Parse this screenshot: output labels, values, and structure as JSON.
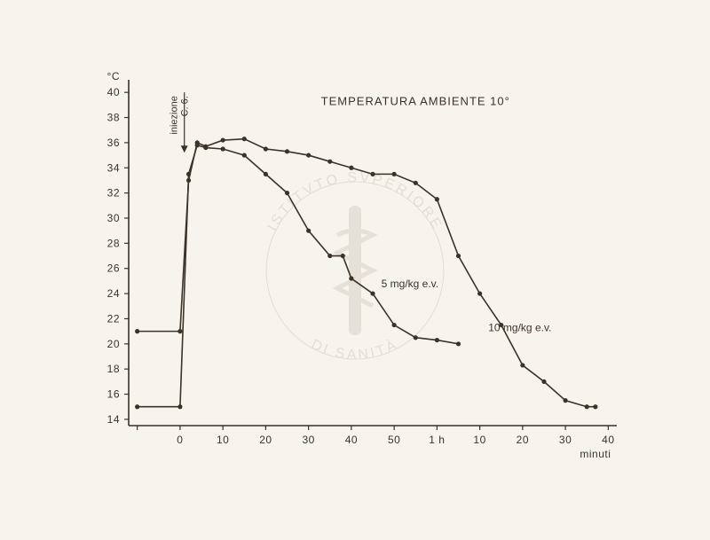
{
  "chart": {
    "type": "line",
    "title": "TEMPERATURA AMBIENTE 10°",
    "title_fontsize": 13,
    "y_unit_label": "°C",
    "x_axis_label": "minuti",
    "label_fontsize": 12,
    "background_color": "#f7f4ee",
    "axis_color": "#3b3228",
    "line_color": "#3b3228",
    "line_width": 1.6,
    "marker_style": "circle",
    "marker_radius": 2.6,
    "x_ticks": [
      {
        "v": -10,
        "label": ""
      },
      {
        "v": 0,
        "label": "0"
      },
      {
        "v": 10,
        "label": "10"
      },
      {
        "v": 20,
        "label": "20"
      },
      {
        "v": 30,
        "label": "30"
      },
      {
        "v": 40,
        "label": "40"
      },
      {
        "v": 50,
        "label": "50"
      },
      {
        "v": 60,
        "label": "1 h"
      },
      {
        "v": 70,
        "label": "10"
      },
      {
        "v": 80,
        "label": "20"
      },
      {
        "v": 90,
        "label": "30"
      },
      {
        "v": 100,
        "label": "40"
      }
    ],
    "y_ticks": [
      14,
      16,
      18,
      20,
      22,
      24,
      26,
      28,
      30,
      32,
      34,
      36,
      38,
      40
    ],
    "xlim": [
      -12,
      102
    ],
    "ylim": [
      13.5,
      41
    ],
    "injection": {
      "label_line1": "iniezione",
      "label_line2": "C. 6.",
      "x": 1,
      "arrow_top_y": 40,
      "arrow_bottom_y": 35.2
    },
    "series": [
      {
        "name": "5 mg/kg e.v.",
        "ann_label": "5 mg/kg e.v.",
        "ann_x": 47,
        "ann_y": 24.5,
        "points": [
          {
            "x": -10,
            "y": 15
          },
          {
            "x": 0,
            "y": 15
          },
          {
            "x": 2,
            "y": 33.5
          },
          {
            "x": 4,
            "y": 35.8
          },
          {
            "x": 6,
            "y": 35.6
          },
          {
            "x": 10,
            "y": 35.5
          },
          {
            "x": 15,
            "y": 35.0
          },
          {
            "x": 20,
            "y": 33.5
          },
          {
            "x": 25,
            "y": 32.0
          },
          {
            "x": 30,
            "y": 29.0
          },
          {
            "x": 35,
            "y": 27.0
          },
          {
            "x": 38,
            "y": 27.0
          },
          {
            "x": 40,
            "y": 25.2
          },
          {
            "x": 45,
            "y": 24.0
          },
          {
            "x": 50,
            "y": 21.5
          },
          {
            "x": 55,
            "y": 20.5
          },
          {
            "x": 60,
            "y": 20.3
          },
          {
            "x": 65,
            "y": 20.0
          }
        ]
      },
      {
        "name": "10 mg/kg e.v.",
        "ann_label": "10 mg/kg e.v.",
        "ann_x": 72,
        "ann_y": 21,
        "points": [
          {
            "x": -10,
            "y": 21
          },
          {
            "x": 0,
            "y": 21
          },
          {
            "x": 2,
            "y": 33
          },
          {
            "x": 4,
            "y": 36
          },
          {
            "x": 6,
            "y": 35.7
          },
          {
            "x": 10,
            "y": 36.2
          },
          {
            "x": 15,
            "y": 36.3
          },
          {
            "x": 20,
            "y": 35.5
          },
          {
            "x": 25,
            "y": 35.3
          },
          {
            "x": 30,
            "y": 35.0
          },
          {
            "x": 35,
            "y": 34.5
          },
          {
            "x": 40,
            "y": 34.0
          },
          {
            "x": 45,
            "y": 33.5
          },
          {
            "x": 50,
            "y": 33.5
          },
          {
            "x": 55,
            "y": 32.8
          },
          {
            "x": 60,
            "y": 31.5
          },
          {
            "x": 65,
            "y": 27.0
          },
          {
            "x": 70,
            "y": 24.0
          },
          {
            "x": 75,
            "y": 21.5
          },
          {
            "x": 80,
            "y": 18.3
          },
          {
            "x": 85,
            "y": 17.0
          },
          {
            "x": 90,
            "y": 15.5
          },
          {
            "x": 95,
            "y": 15.0
          },
          {
            "x": 97,
            "y": 15.0
          }
        ]
      }
    ]
  },
  "watermark": {
    "text_top": "ISTITVTO  SVPERIORE",
    "text_bottom": "DI  SANITÀ",
    "color": "#a89f90",
    "opacity": 0.25
  }
}
